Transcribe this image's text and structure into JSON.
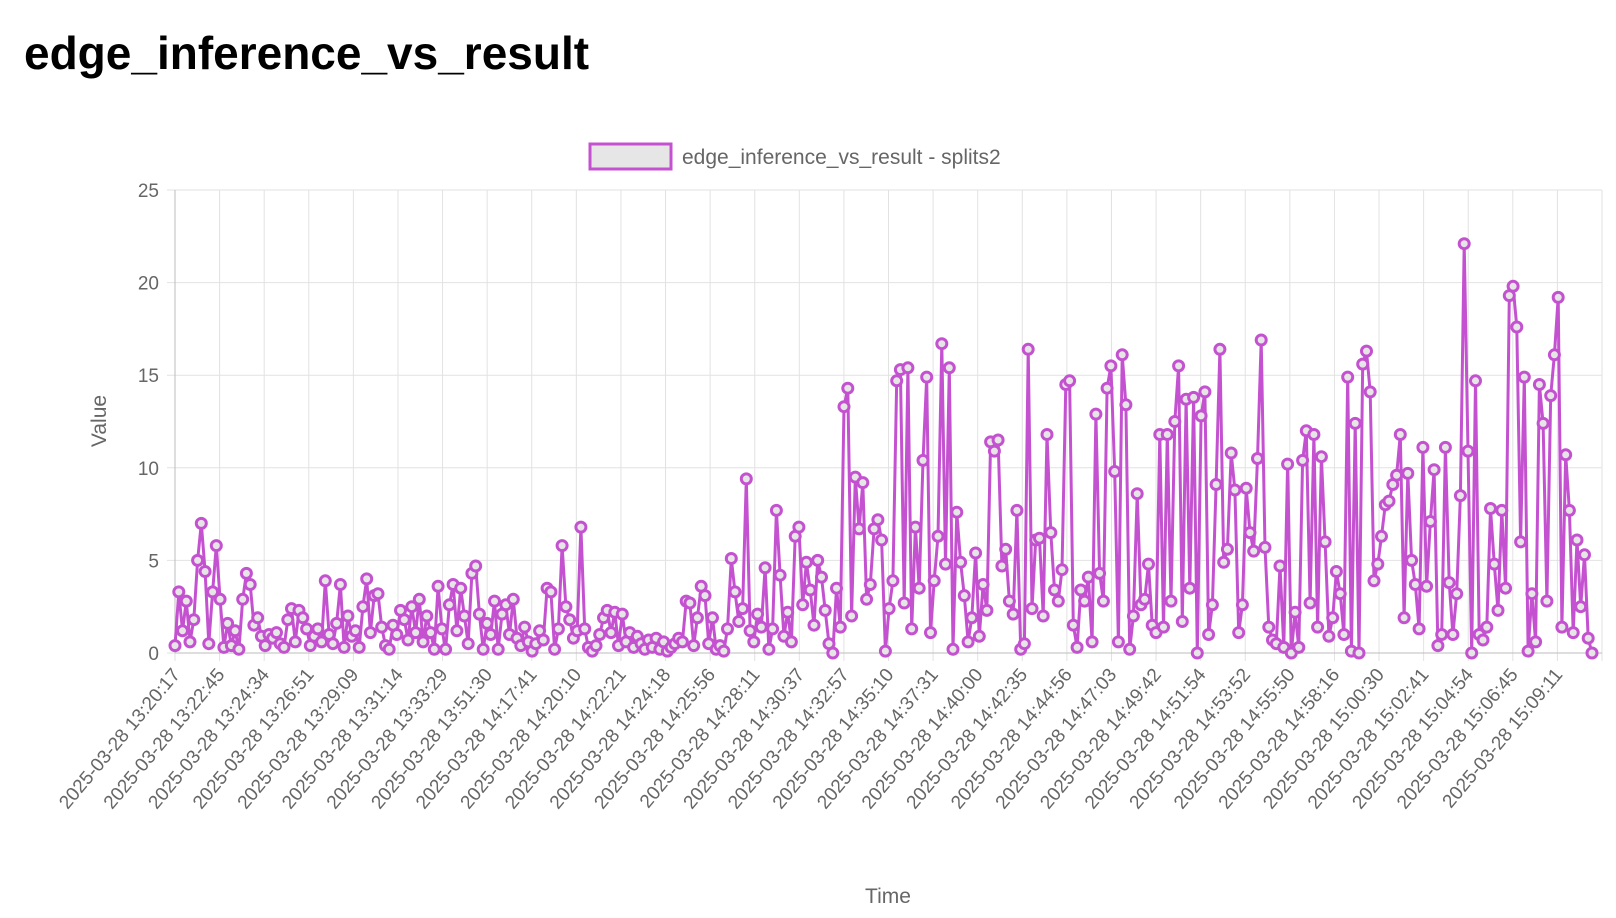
{
  "page": {
    "title": "edge_inference_vs_result"
  },
  "colors": {
    "series": "#c452d0",
    "grid": "#e2e2e2",
    "text": "#666666",
    "legend_fill": "#e6e6e6"
  },
  "chart_data": {
    "type": "line",
    "title": "",
    "xlabel": "Time",
    "ylabel": "Value",
    "ylim": [
      0,
      25
    ],
    "yticks": [
      0,
      5,
      10,
      15,
      20,
      25
    ],
    "grid": true,
    "legend": {
      "position": "top",
      "entries": [
        "edge_inference_vs_result - splits2"
      ]
    },
    "x_tick_labels": [
      "2025-03-28 13:20:17",
      "2025-03-28 13:22:45",
      "2025-03-28 13:24:34",
      "2025-03-28 13:26:51",
      "2025-03-28 13:29:09",
      "2025-03-28 13:31:14",
      "2025-03-28 13:33:29",
      "2025-03-28 13:51:30",
      "2025-03-28 14:17:41",
      "2025-03-28 14:20:10",
      "2025-03-28 14:22:21",
      "2025-03-28 14:24:18",
      "2025-03-28 14:25:56",
      "2025-03-28 14:28:11",
      "2025-03-28 14:30:37",
      "2025-03-28 14:32:57",
      "2025-03-28 14:35:10",
      "2025-03-28 14:37:31",
      "2025-03-28 14:40:00",
      "2025-03-28 14:42:35",
      "2025-03-28 14:44:56",
      "2025-03-28 14:47:03",
      "2025-03-28 14:49:42",
      "2025-03-28 14:51:54",
      "2025-03-28 14:53:52",
      "2025-03-28 14:55:50",
      "2025-03-28 14:58:16",
      "2025-03-28 15:00:30",
      "2025-03-28 15:02:41",
      "2025-03-28 15:04:54",
      "2025-03-28 15:06:45",
      "2025-03-28 15:09:11"
    ],
    "series": [
      {
        "name": "edge_inference_vs_result - splits2",
        "values": [
          0.4,
          3.3,
          1.2,
          2.8,
          0.6,
          1.8,
          5.0,
          7.0,
          4.4,
          0.5,
          3.3,
          5.8,
          2.9,
          0.3,
          1.6,
          0.4,
          1.2,
          0.2,
          2.9,
          4.3,
          3.7,
          1.5,
          1.9,
          0.9,
          0.4,
          1.0,
          0.8,
          1.1,
          0.5,
          0.3,
          1.8,
          2.4,
          0.6,
          2.3,
          1.9,
          1.3,
          0.4,
          0.9,
          1.3,
          0.6,
          3.9,
          1.0,
          0.5,
          1.6,
          3.7,
          0.3,
          2.0,
          0.9,
          1.2,
          0.3,
          2.5,
          4.0,
          1.1,
          3.1,
          3.2,
          1.4,
          0.4,
          0.2,
          1.5,
          1.0,
          2.3,
          1.8,
          0.7,
          2.5,
          1.1,
          2.9,
          0.6,
          2.0,
          1.1,
          0.2,
          3.6,
          1.3,
          0.2,
          2.6,
          3.7,
          1.2,
          3.5,
          2.0,
          0.5,
          4.3,
          4.7,
          2.1,
          0.2,
          1.6,
          1.0,
          2.8,
          0.2,
          2.1,
          2.6,
          1.0,
          2.9,
          0.8,
          0.4,
          1.4,
          0.6,
          0.1,
          0.5,
          1.2,
          0.7,
          3.5,
          3.3,
          0.2,
          1.3,
          5.8,
          2.5,
          1.8,
          0.8,
          1.2,
          6.8,
          1.3,
          0.3,
          0.1,
          0.4,
          1.0,
          1.9,
          2.3,
          1.1,
          2.2,
          0.4,
          2.1,
          0.6,
          1.1,
          0.3,
          0.9,
          0.5,
          0.2,
          0.7,
          0.3,
          0.8,
          0.2,
          0.6,
          0.1,
          0.3,
          0.5,
          0.8,
          0.6,
          2.8,
          2.7,
          0.4,
          1.9,
          3.6,
          3.1,
          0.5,
          1.9,
          0.2,
          0.4,
          0.1,
          1.3,
          5.1,
          3.3,
          1.7,
          2.4,
          9.4,
          1.2,
          0.6,
          2.1,
          1.4,
          4.6,
          0.2,
          1.3,
          7.7,
          4.2,
          0.9,
          2.2,
          0.6,
          6.3,
          6.8,
          2.6,
          4.9,
          3.4,
          1.5,
          5.0,
          4.1,
          2.3,
          0.5,
          0.0,
          3.5,
          1.4,
          13.3,
          14.3,
          2.0,
          9.5,
          6.7,
          9.2,
          2.9,
          3.7,
          6.7,
          7.2,
          6.1,
          0.1,
          2.4,
          3.9,
          14.7,
          15.3,
          2.7,
          15.4,
          1.3,
          6.8,
          3.5,
          10.4,
          14.9,
          1.1,
          3.9,
          6.3,
          16.7,
          4.8,
          15.4,
          0.2,
          7.6,
          4.9,
          3.1,
          0.6,
          1.9,
          5.4,
          0.9,
          3.7,
          2.3,
          11.4,
          10.9,
          11.5,
          4.7,
          5.6,
          2.8,
          2.1,
          7.7,
          0.2,
          0.5,
          16.4,
          2.4,
          6.1,
          6.2,
          2.0,
          11.8,
          6.5,
          3.4,
          2.8,
          4.5,
          14.5,
          14.7,
          1.5,
          0.3,
          3.4,
          2.8,
          4.1,
          0.6,
          12.9,
          4.3,
          2.8,
          14.3,
          15.5,
          9.8,
          0.6,
          16.1,
          13.4,
          0.2,
          2.0,
          8.6,
          2.6,
          2.9,
          4.8,
          1.5,
          1.1,
          11.8,
          1.4,
          11.8,
          2.8,
          12.5,
          15.5,
          1.7,
          13.7,
          3.5,
          13.8,
          0.0,
          12.8,
          14.1,
          1.0,
          2.6,
          9.1,
          16.4,
          4.9,
          5.6,
          10.8,
          8.8,
          1.1,
          2.6,
          8.9,
          6.5,
          5.5,
          10.5,
          16.9,
          5.7,
          1.4,
          0.7,
          0.5,
          4.7,
          0.3,
          10.2,
          0.0,
          2.2,
          0.3,
          10.4,
          12.0,
          2.7,
          11.8,
          1.4,
          10.6,
          6.0,
          0.9,
          1.9,
          4.4,
          3.2,
          1.0,
          14.9,
          0.1,
          12.4,
          0.0,
          15.6,
          16.3,
          14.1,
          3.9,
          4.8,
          6.3,
          8.0,
          8.2,
          9.1,
          9.6,
          11.8,
          1.9,
          9.7,
          5.0,
          3.7,
          1.3,
          11.1,
          3.6,
          7.1,
          9.9,
          0.4,
          1.0,
          11.1,
          3.8,
          1.0,
          3.2,
          8.5,
          22.1,
          10.9,
          0.0,
          14.7,
          1.0,
          0.7,
          1.4,
          7.8,
          4.8,
          2.3,
          7.7,
          3.5,
          19.3,
          19.8,
          17.6,
          6.0,
          14.9,
          0.1,
          3.2,
          0.6,
          14.5,
          12.4,
          2.8,
          13.9,
          16.1,
          19.2,
          1.4,
          10.7,
          7.7,
          1.1,
          6.1,
          2.5,
          5.3,
          0.8,
          0.0
        ]
      }
    ]
  }
}
